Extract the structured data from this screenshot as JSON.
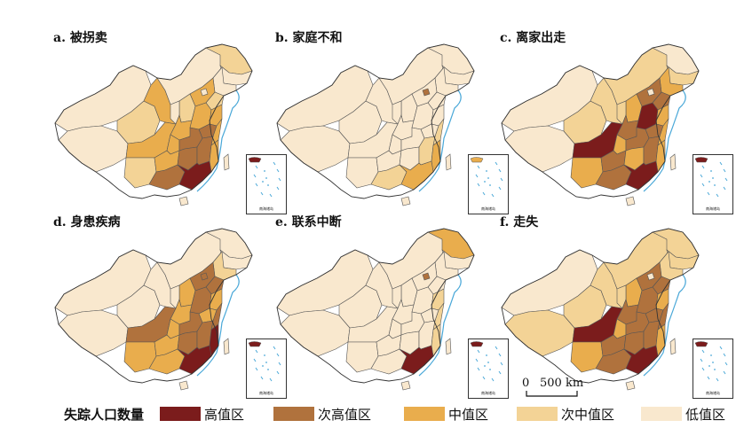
{
  "colors": {
    "high": "#7b1c1c",
    "second_high": "#b0723d",
    "middle": "#e9ad4d",
    "second_middle": "#f3d396",
    "low": "#f9e8ce",
    "border": "#555555",
    "sea": "#4aa8d8"
  },
  "panels": [
    {
      "id": "a",
      "title": "a. 被拐卖"
    },
    {
      "id": "b",
      "title": "b. 家庭不和"
    },
    {
      "id": "c",
      "title": "c. 离家出走"
    },
    {
      "id": "d",
      "title": "d. 身患疾病"
    },
    {
      "id": "e",
      "title": "e. 联系中断"
    },
    {
      "id": "f",
      "title": "f. 走失"
    }
  ],
  "inset_label": "南海诸岛",
  "scale": {
    "zero": "0",
    "distance": "500 km"
  },
  "legend": {
    "title": "失踪人口数量",
    "items": [
      {
        "key": "high",
        "label": "高值区"
      },
      {
        "key": "second_high",
        "label": "次高值区"
      },
      {
        "key": "middle",
        "label": "中值区"
      },
      {
        "key": "second_middle",
        "label": "次中值区"
      },
      {
        "key": "low",
        "label": "低值区"
      }
    ]
  }
}
